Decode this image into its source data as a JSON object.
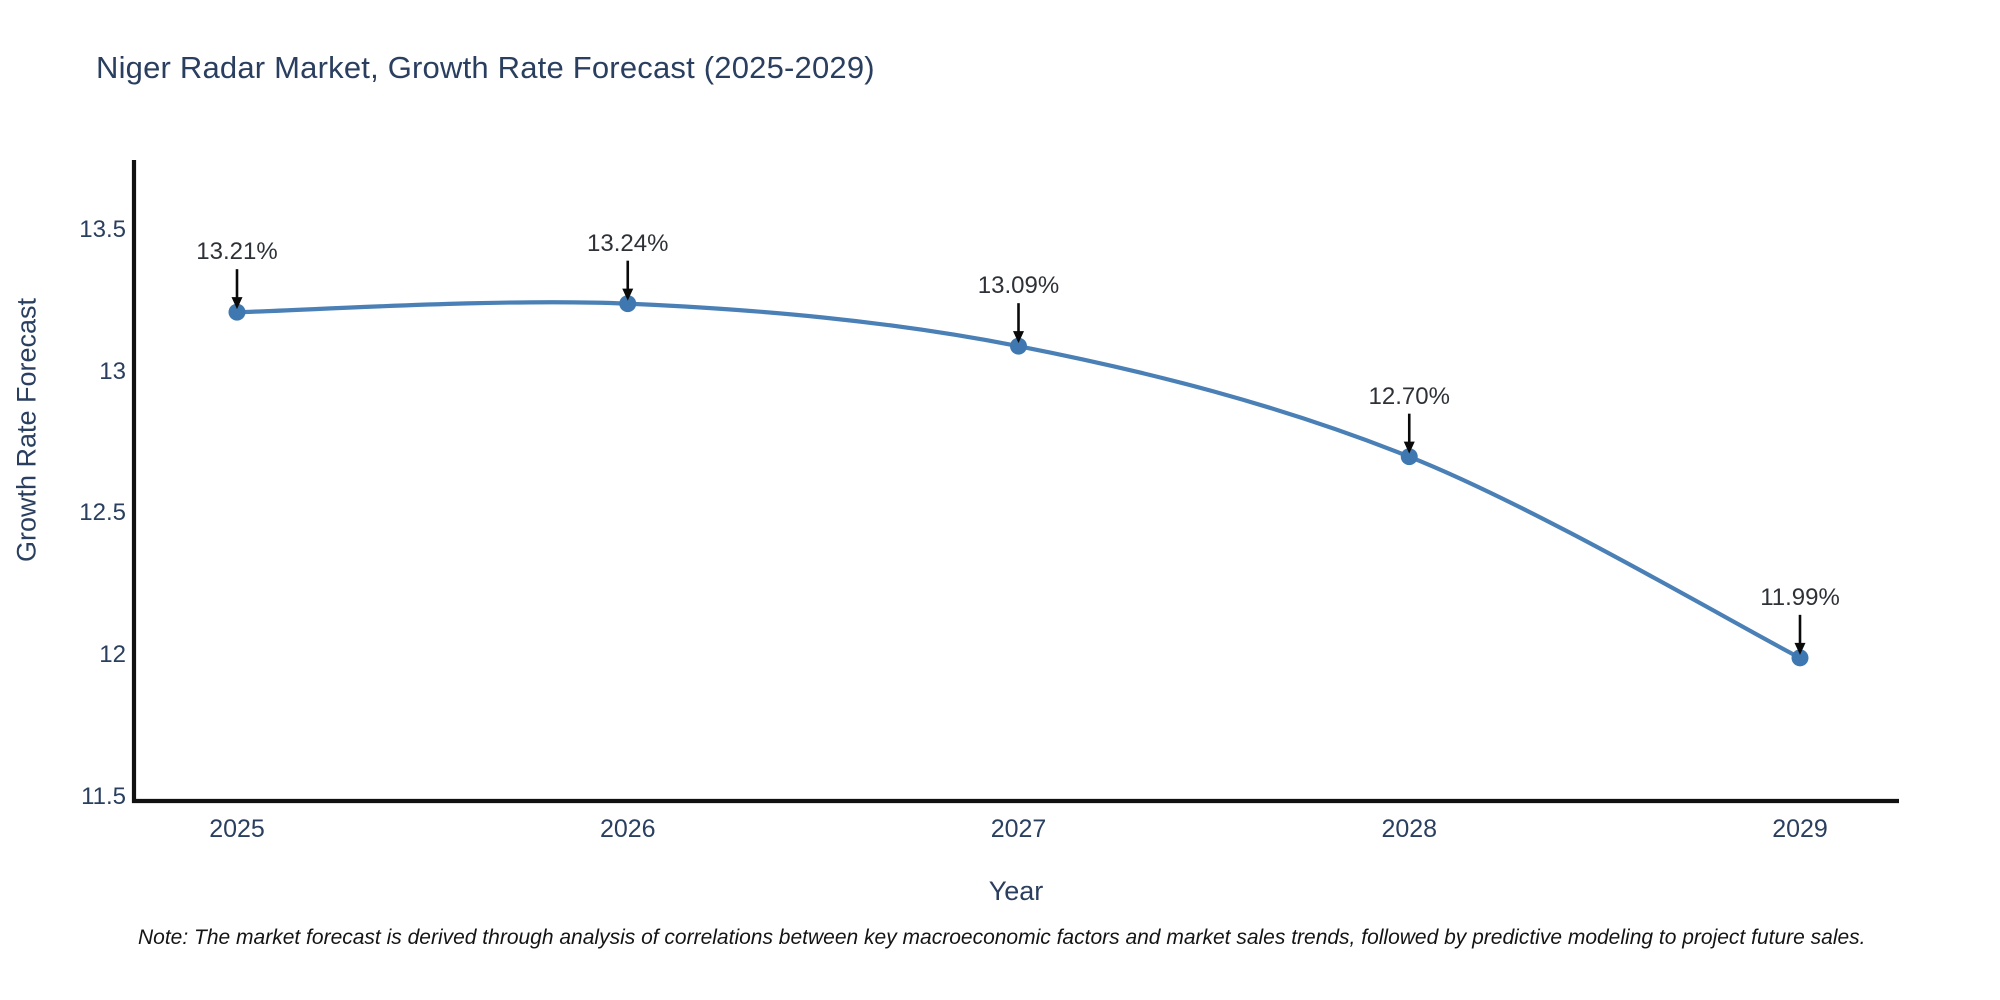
{
  "chart_data": {
    "type": "line",
    "title": "Niger Radar Market, Growth Rate Forecast (2025-2029)",
    "xlabel": "Year",
    "ylabel": "Growth Rate Forecast",
    "x": [
      2025,
      2026,
      2027,
      2028,
      2029
    ],
    "values": [
      13.21,
      13.24,
      13.09,
      12.7,
      11.99
    ],
    "point_labels": [
      "13.21%",
      "13.24%",
      "13.09%",
      "12.70%",
      "11.99%"
    ],
    "x_tick_labels": [
      "2025",
      "2026",
      "2027",
      "2028",
      "2029"
    ],
    "y_ticks": [
      13.5,
      13.0,
      12.5,
      12.0,
      11.5
    ],
    "y_tick_labels": [
      "13.5",
      "13",
      "12.5",
      "12",
      "11.5"
    ],
    "ylim": [
      11.49,
      13.75
    ],
    "grid": false,
    "legend": "none",
    "line_color": "#4a80b5",
    "marker_color": "#3f78b0",
    "axis_color": "#111111",
    "arrow_color": "#0a0a0a",
    "text_color": "#2a3f5f",
    "annotation_color": "#2e3238"
  },
  "note": {
    "text": "Note: The market forecast is derived through analysis of correlations between key macroeconomic factors and market sales trends, followed by predictive modeling to project future sales."
  }
}
